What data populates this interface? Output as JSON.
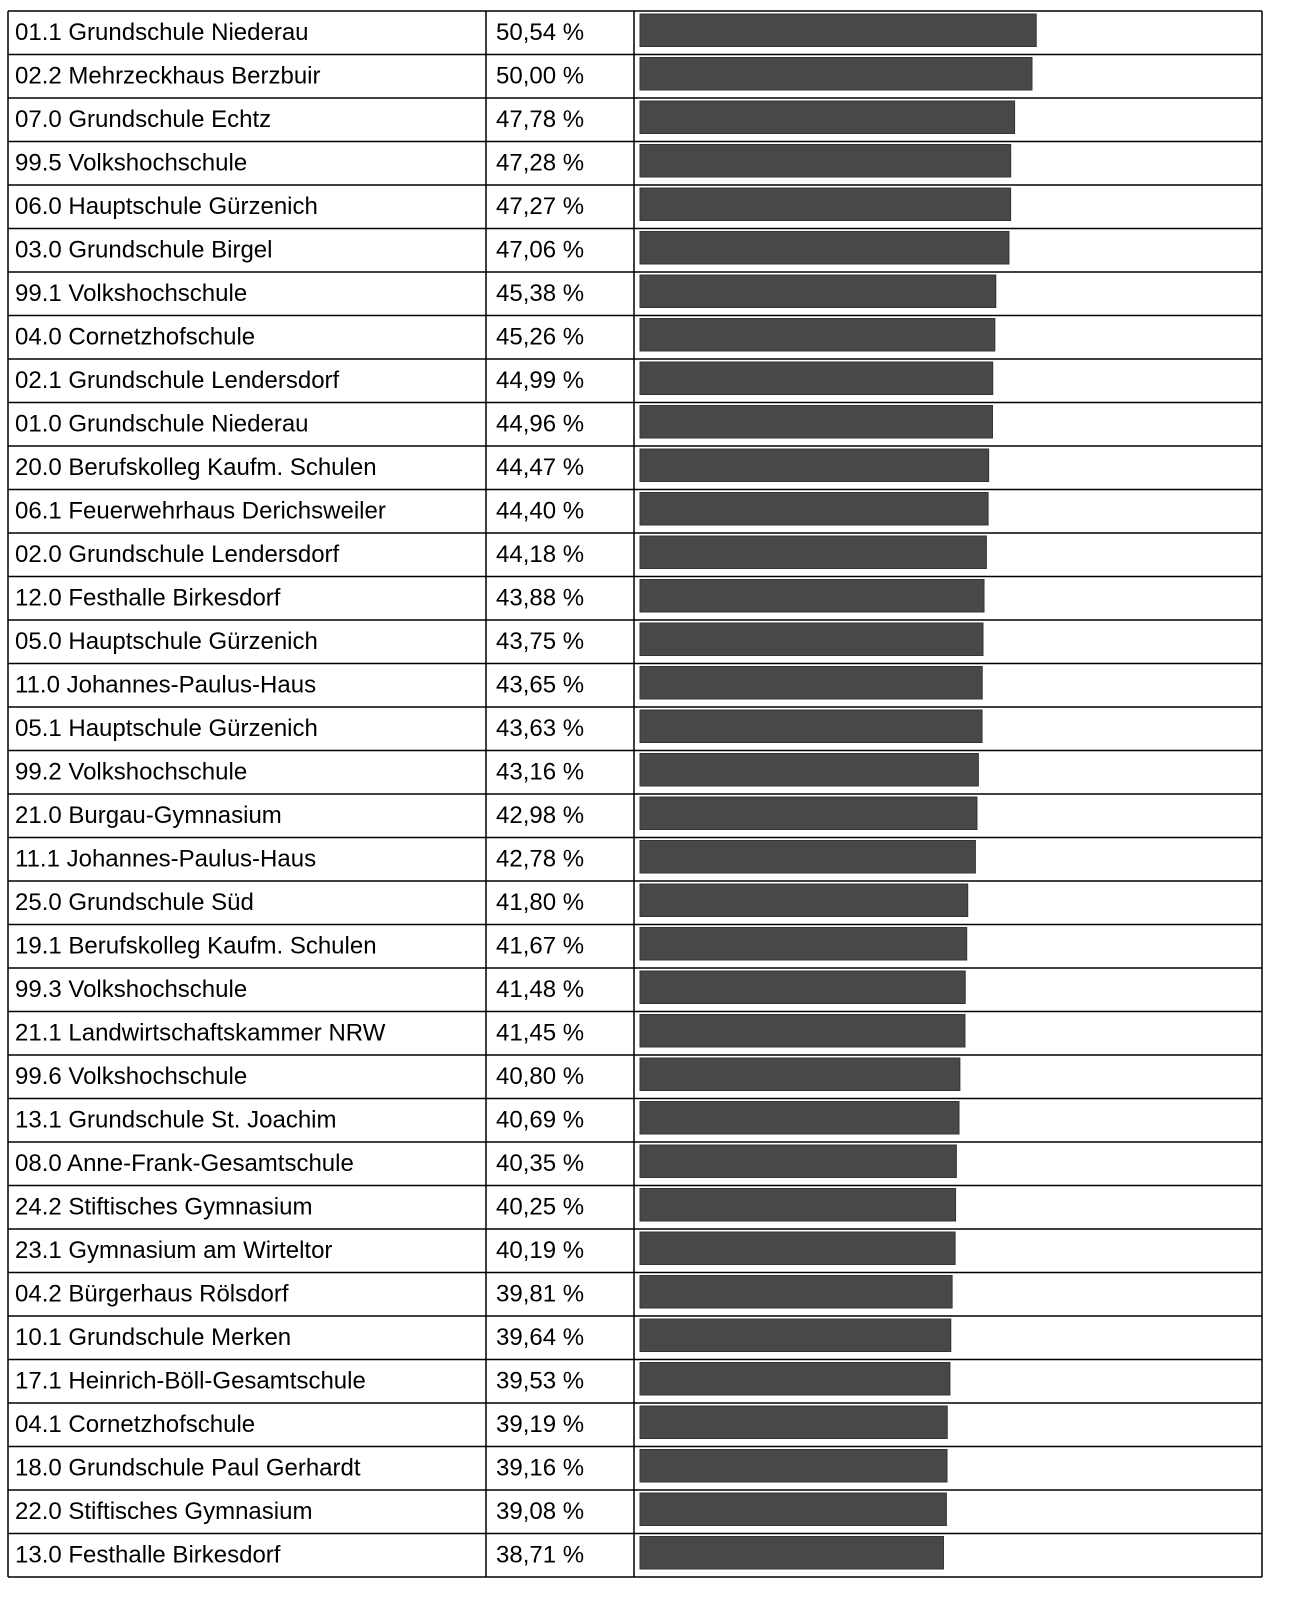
{
  "chart_data": {
    "type": "bar",
    "orientation": "horizontal",
    "color": "#484848",
    "categories": [
      "01.1 Grundschule Niederau",
      "02.2 Mehrzeckhaus Berzbuir",
      "07.0 Grundschule Echtz",
      "99.5 Volkshochschule",
      "06.0 Hauptschule Gürzenich",
      "03.0 Grundschule Birgel",
      "99.1 Volkshochschule",
      "04.0 Cornetzhofschule",
      "02.1 Grundschule Lendersdorf",
      "01.0 Grundschule Niederau",
      "20.0 Berufskolleg Kaufm. Schulen",
      "06.1 Feuerwehrhaus Derichsweiler",
      "02.0 Grundschule Lendersdorf",
      "12.0 Festhalle Birkesdorf",
      "05.0 Hauptschule Gürzenich",
      "11.0 Johannes-Paulus-Haus",
      "05.1 Hauptschule Gürzenich",
      "99.2 Volkshochschule",
      "21.0 Burgau-Gymnasium",
      "11.1 Johannes-Paulus-Haus",
      "25.0 Grundschule Süd",
      "19.1 Berufskolleg Kaufm. Schulen",
      "99.3 Volkshochschule",
      "21.1 Landwirtschaftskammer NRW",
      "99.6 Volkshochschule",
      "13.1 Grundschule St. Joachim",
      "08.0 Anne-Frank-Gesamtschule",
      "24.2 Stiftisches Gymnasium",
      "23.1 Gymnasium am Wirteltor",
      "04.2 Bürgerhaus Rölsdorf",
      "10.1 Grundschule Merken",
      "17.1 Heinrich-Böll-Gesamtschule",
      "04.1 Cornetzhofschule",
      "18.0 Grundschule Paul Gerhardt",
      "22.0 Stiftisches Gymnasium",
      "13.0 Festhalle Birkesdorf"
    ],
    "values": [
      50.54,
      50.0,
      47.78,
      47.28,
      47.27,
      47.06,
      45.38,
      45.26,
      44.99,
      44.96,
      44.47,
      44.4,
      44.18,
      43.88,
      43.75,
      43.65,
      43.63,
      43.16,
      42.98,
      42.78,
      41.8,
      41.67,
      41.48,
      41.45,
      40.8,
      40.69,
      40.35,
      40.25,
      40.19,
      39.81,
      39.64,
      39.53,
      39.19,
      39.16,
      39.08,
      38.71
    ],
    "value_labels": [
      "50,54 %",
      "50,00 %",
      "47,78 %",
      "47,28 %",
      "47,27 %",
      "47,06 %",
      "45,38 %",
      "45,26 %",
      "44,99 %",
      "44,96 %",
      "44,47 %",
      "44,40 %",
      "44,18 %",
      "43,88 %",
      "43,75 %",
      "43,65 %",
      "43,63 %",
      "43,16 %",
      "42,98 %",
      "42,78 %",
      "41,80 %",
      "41,67 %",
      "41,48 %",
      "41,45 %",
      "40,80 %",
      "40,69 %",
      "40,35 %",
      "40,25 %",
      "40,19 %",
      "39,81 %",
      "39,64 %",
      "39,53 %",
      "39,19 %",
      "39,16 %",
      "39,08 %",
      "38,71 %"
    ]
  }
}
